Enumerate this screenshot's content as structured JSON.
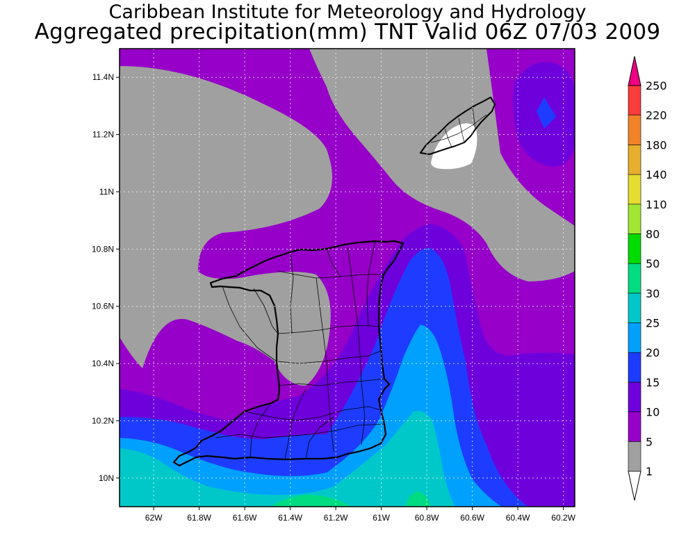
{
  "title": {
    "line1": "Caribbean Institute for Meteorology and Hydrology",
    "line2": "Aggregated precipitation(mm) TNT Valid 06Z 07/03 2009"
  },
  "map": {
    "lon_range": [
      -62.15,
      -60.15
    ],
    "lat_range": [
      9.9,
      11.5
    ],
    "lon_ticks": [
      {
        "value": -62.0,
        "label": "62W"
      },
      {
        "value": -61.8,
        "label": "61.8W"
      },
      {
        "value": -61.6,
        "label": "61.6W"
      },
      {
        "value": -61.4,
        "label": "61.4W"
      },
      {
        "value": -61.2,
        "label": "61.2W"
      },
      {
        "value": -61.0,
        "label": "61W"
      },
      {
        "value": -60.8,
        "label": "60.8W"
      },
      {
        "value": -60.6,
        "label": "60.6W"
      },
      {
        "value": -60.4,
        "label": "60.4W"
      },
      {
        "value": -60.2,
        "label": "60.2W"
      }
    ],
    "lat_ticks": [
      {
        "value": 10.0,
        "label": "10N"
      },
      {
        "value": 10.2,
        "label": "10.2N"
      },
      {
        "value": 10.4,
        "label": "10.4N"
      },
      {
        "value": 10.6,
        "label": "10.6N"
      },
      {
        "value": 10.8,
        "label": "10.8N"
      },
      {
        "value": 11.0,
        "label": "11N"
      },
      {
        "value": 11.2,
        "label": "11.2N"
      },
      {
        "value": 11.4,
        "label": "11.4N"
      }
    ],
    "grid": true,
    "shaded_variable": "precipitation (mm)"
  },
  "colorbar": {
    "levels": [
      {
        "label": "1",
        "color": "#ffffff"
      },
      {
        "label": "5",
        "color": "#a0a0a0"
      },
      {
        "label": "10",
        "color": "#9600c8"
      },
      {
        "label": "15",
        "color": "#6e00dc"
      },
      {
        "label": "20",
        "color": "#1e3cff"
      },
      {
        "label": "25",
        "color": "#00a0ff"
      },
      {
        "label": "30",
        "color": "#00c8c8"
      },
      {
        "label": "50",
        "color": "#00dc82"
      },
      {
        "label": "80",
        "color": "#00dc00"
      },
      {
        "label": "110",
        "color": "#a0e632"
      },
      {
        "label": "140",
        "color": "#e6dc32"
      },
      {
        "label": "180",
        "color": "#e6af2d"
      },
      {
        "label": "220",
        "color": "#f08228"
      },
      {
        "label": "250",
        "color": "#fa3c3c"
      }
    ],
    "top_color": "#f00082"
  }
}
